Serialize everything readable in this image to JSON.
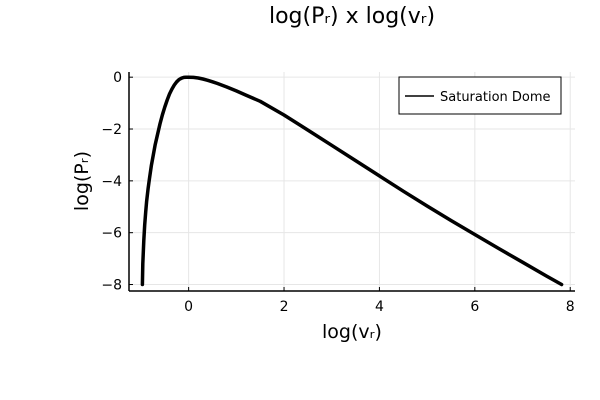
{
  "chart_data": {
    "type": "line",
    "title": "log(Pᵣ) x log(vᵣ)",
    "xlabel": "log(vᵣ)",
    "ylabel": "log(Pᵣ)",
    "xlim": [
      -1.25,
      8.1
    ],
    "ylim": [
      -8.25,
      0.2
    ],
    "xticks": [
      0,
      2,
      4,
      6,
      8
    ],
    "yticks": [
      0,
      -2,
      -4,
      -6,
      -8
    ],
    "grid": true,
    "legend": {
      "position": "top-right",
      "entries": [
        "Saturation Dome"
      ]
    },
    "series": [
      {
        "name": "Saturation Dome",
        "color": "#000000",
        "x": [
          -0.97,
          -0.96,
          -0.94,
          -0.92,
          -0.9,
          -0.88,
          -0.85,
          -0.82,
          -0.78,
          -0.74,
          -0.7,
          -0.65,
          -0.6,
          -0.55,
          -0.5,
          -0.45,
          -0.4,
          -0.35,
          -0.3,
          -0.25,
          -0.2,
          -0.15,
          -0.1,
          -0.05,
          0.0,
          0.1,
          0.2,
          0.3,
          0.4,
          0.5,
          0.6,
          0.8,
          1.0,
          1.2,
          1.5,
          2.0,
          2.5,
          3.0,
          3.5,
          4.0,
          4.5,
          5.0,
          5.5,
          6.0,
          6.5,
          7.0,
          7.5,
          7.82
        ],
        "y": [
          -8.0,
          -7.2,
          -6.3,
          -5.7,
          -5.2,
          -4.8,
          -4.3,
          -3.9,
          -3.4,
          -3.0,
          -2.6,
          -2.2,
          -1.8,
          -1.45,
          -1.15,
          -0.88,
          -0.65,
          -0.46,
          -0.3,
          -0.18,
          -0.09,
          -0.04,
          -0.01,
          0.0,
          0.0,
          -0.01,
          -0.03,
          -0.07,
          -0.12,
          -0.18,
          -0.24,
          -0.38,
          -0.53,
          -0.69,
          -0.93,
          -1.46,
          -2.04,
          -2.63,
          -3.22,
          -3.81,
          -4.4,
          -4.97,
          -5.53,
          -6.07,
          -6.61,
          -7.14,
          -7.67,
          -8.0
        ]
      }
    ]
  }
}
